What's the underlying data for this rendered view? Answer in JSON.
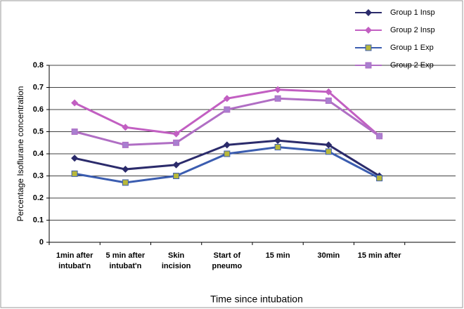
{
  "chart_data": {
    "type": "line",
    "y_label": "Percentage Isoflurane concentration",
    "x_label": "Time since intubation",
    "categories": [
      "1min after\nintubat'n",
      "5 min after\nintubat'n",
      "Skin\nincision",
      "Start of\npneumo",
      "15 min",
      "30min",
      "15 min after",
      null
    ],
    "series": [
      {
        "name": "Group 1 Insp",
        "color": "#2b2b6b",
        "marker": "diamond",
        "marker_color": "#2b2b6b",
        "values": [
          0.38,
          0.33,
          0.35,
          0.44,
          0.46,
          0.44,
          0.3,
          null
        ]
      },
      {
        "name": "Group 2 Insp",
        "color": "#c25fc2",
        "marker": "diamond",
        "marker_color": "#c25fc2",
        "values": [
          0.63,
          0.52,
          0.49,
          0.65,
          0.69,
          0.68,
          0.48,
          null
        ]
      },
      {
        "name": "Group 1 Exp",
        "color": "#3b5db0",
        "marker": "square",
        "marker_color": "#b8b83a",
        "values": [
          0.31,
          0.27,
          0.3,
          0.4,
          0.43,
          0.41,
          0.29,
          null
        ]
      },
      {
        "name": "Group 2 Exp",
        "color": "#b06ec4",
        "marker": "square",
        "marker_color": "#a97fd0",
        "values": [
          0.5,
          0.44,
          0.45,
          0.6,
          0.65,
          0.64,
          0.48,
          null
        ]
      }
    ],
    "ylim": [
      0,
      0.8
    ],
    "yticks": [
      0,
      0.1,
      0.2,
      0.3,
      0.4,
      0.5,
      0.6,
      0.7,
      0.8
    ],
    "grid": true,
    "legend": "top-right"
  }
}
